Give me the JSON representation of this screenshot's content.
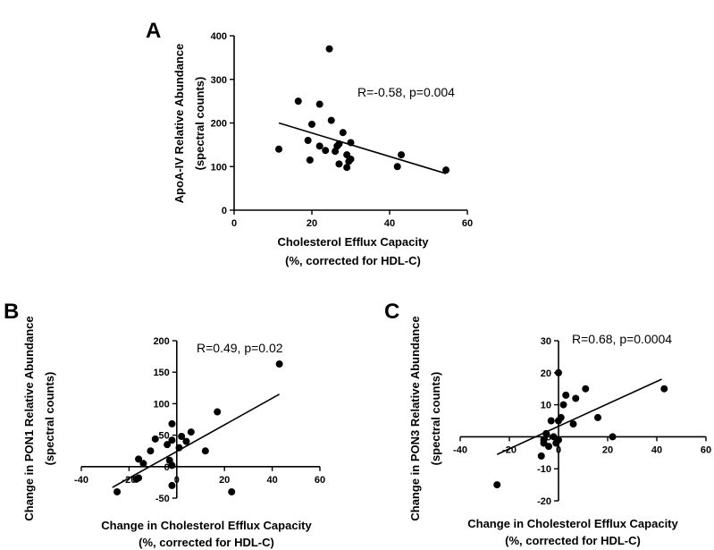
{
  "chart_data": [
    {
      "id": "A",
      "panel_label": "A",
      "type": "scatter",
      "title": "",
      "xlabel_lines": [
        "Cholesterol  Efflux Capacity",
        "(%, corrected for HDL-C)"
      ],
      "ylabel_lines": [
        "ApoA-IV Relative  Abundance",
        "(spectral counts)"
      ],
      "xlim": [
        0,
        60
      ],
      "ylim": [
        0,
        400
      ],
      "xticks": [
        0,
        20,
        40,
        60
      ],
      "yticks": [
        0,
        100,
        200,
        300,
        400
      ],
      "annotation": "R=-0.58, p=0.004",
      "points": [
        {
          "x": 11.5,
          "y": 140
        },
        {
          "x": 16.5,
          "y": 250
        },
        {
          "x": 19,
          "y": 160
        },
        {
          "x": 19.5,
          "y": 115
        },
        {
          "x": 20,
          "y": 197
        },
        {
          "x": 22,
          "y": 243
        },
        {
          "x": 22,
          "y": 147
        },
        {
          "x": 23.5,
          "y": 137
        },
        {
          "x": 24.5,
          "y": 370
        },
        {
          "x": 25,
          "y": 206
        },
        {
          "x": 26,
          "y": 135
        },
        {
          "x": 26.5,
          "y": 147
        },
        {
          "x": 27,
          "y": 152
        },
        {
          "x": 27,
          "y": 106
        },
        {
          "x": 28,
          "y": 178
        },
        {
          "x": 29,
          "y": 127
        },
        {
          "x": 29,
          "y": 98
        },
        {
          "x": 29.5,
          "y": 112
        },
        {
          "x": 30,
          "y": 155
        },
        {
          "x": 30,
          "y": 117
        },
        {
          "x": 42,
          "y": 100
        },
        {
          "x": 43,
          "y": 127
        },
        {
          "x": 54.5,
          "y": 92
        }
      ],
      "fit": {
        "x": [
          11.5,
          54.5
        ],
        "y": [
          200,
          84
        ]
      }
    },
    {
      "id": "B",
      "panel_label": "B",
      "type": "scatter",
      "title": "",
      "xlabel_lines": [
        "Change in Cholesterol  Efflux Capacity",
        "(%, corrected for HDL-C)"
      ],
      "ylabel_lines": [
        "Change in PON1 Relative  Abundance",
        "(spectral counts)"
      ],
      "xlim": [
        -40,
        60
      ],
      "ylim": [
        -50,
        200
      ],
      "xticks": [
        -40,
        -20,
        0,
        20,
        40,
        60
      ],
      "yticks": [
        -50,
        0,
        50,
        100,
        150,
        200
      ],
      "annotation": "R=0.49, p=0.02",
      "points": [
        {
          "x": -25,
          "y": -40
        },
        {
          "x": -17,
          "y": -20
        },
        {
          "x": -16,
          "y": -18
        },
        {
          "x": -16,
          "y": 12
        },
        {
          "x": -14,
          "y": 5
        },
        {
          "x": -11,
          "y": 25
        },
        {
          "x": -9,
          "y": 44
        },
        {
          "x": -4,
          "y": 35
        },
        {
          "x": -3,
          "y": 10
        },
        {
          "x": -2,
          "y": 2
        },
        {
          "x": -2,
          "y": 68
        },
        {
          "x": -2,
          "y": 42
        },
        {
          "x": -2,
          "y": -30
        },
        {
          "x": 1,
          "y": 30
        },
        {
          "x": 2,
          "y": 48
        },
        {
          "x": 4,
          "y": 40
        },
        {
          "x": 6,
          "y": 55
        },
        {
          "x": 12,
          "y": 25
        },
        {
          "x": 17,
          "y": 87
        },
        {
          "x": 23,
          "y": -40
        },
        {
          "x": 43,
          "y": 163
        }
      ],
      "fit": {
        "x": [
          -27,
          43
        ],
        "y": [
          -33,
          115
        ]
      }
    },
    {
      "id": "C",
      "panel_label": "C",
      "type": "scatter",
      "title": "",
      "xlabel_lines": [
        "Change in Cholesterol  Efflux Capacity",
        "(%, corrected for HDL-C)"
      ],
      "ylabel_lines": [
        "Change in PON3 Relative  Abundance",
        "(spectral counts)"
      ],
      "xlim": [
        -40,
        60
      ],
      "ylim": [
        -20,
        30
      ],
      "xticks": [
        -40,
        -20,
        0,
        20,
        40,
        60
      ],
      "yticks": [
        -20,
        -10,
        0,
        10,
        20,
        30
      ],
      "annotation": "R=0.68, p=0.0004",
      "points": [
        {
          "x": -25,
          "y": -15
        },
        {
          "x": -7,
          "y": -6
        },
        {
          "x": -6,
          "y": -2
        },
        {
          "x": -6,
          "y": -1
        },
        {
          "x": -5,
          "y": 1
        },
        {
          "x": -4,
          "y": -3
        },
        {
          "x": -3,
          "y": 5
        },
        {
          "x": -2,
          "y": 0
        },
        {
          "x": -1,
          "y": -2
        },
        {
          "x": 0,
          "y": 20
        },
        {
          "x": 0,
          "y": 5
        },
        {
          "x": 0,
          "y": -1
        },
        {
          "x": 1,
          "y": 6
        },
        {
          "x": 2,
          "y": 10
        },
        {
          "x": 3,
          "y": 13
        },
        {
          "x": 6,
          "y": 4
        },
        {
          "x": 7,
          "y": 12
        },
        {
          "x": 11,
          "y": 15
        },
        {
          "x": 16,
          "y": 6
        },
        {
          "x": 22,
          "y": 0
        },
        {
          "x": 43,
          "y": 15
        }
      ],
      "fit": {
        "x": [
          -25,
          42
        ],
        "y": [
          -5.5,
          18
        ]
      }
    }
  ]
}
